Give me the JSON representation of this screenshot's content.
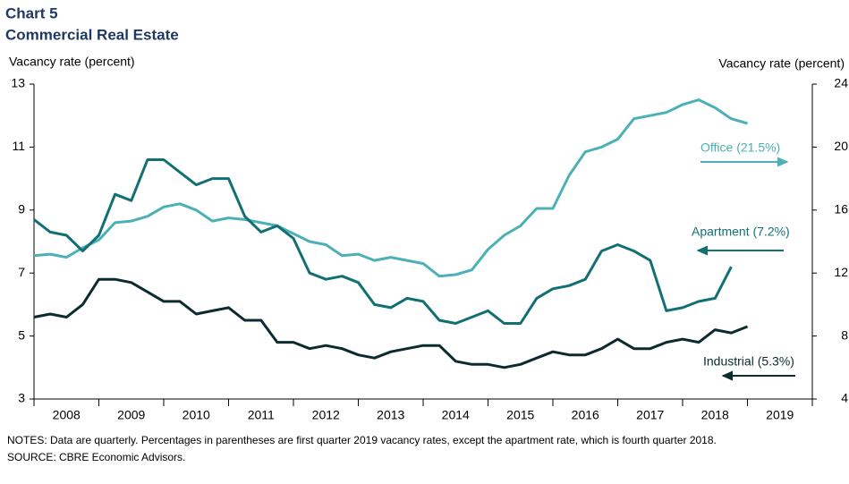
{
  "chart_data": {
    "type": "line",
    "title": "Chart 5",
    "subtitle": "Commercial Real Estate",
    "y_label": "Vacancy rate (percent)",
    "y2_label": "Vacancy rate (percent)",
    "notes": "NOTES: Data are quarterly. Percentages in parentheses are first quarter 2019 vacancy rates, except the apartment rate, which is fourth quarter 2018.",
    "source": "SOURCE: CBRE Economic Advisors.",
    "categories": [
      "2008",
      null,
      null,
      null,
      "2009",
      null,
      null,
      null,
      "2010",
      null,
      null,
      null,
      "2011",
      null,
      null,
      null,
      "2012",
      null,
      null,
      null,
      "2013",
      null,
      null,
      null,
      "2014",
      null,
      null,
      null,
      "2015",
      null,
      null,
      null,
      "2016",
      null,
      null,
      null,
      "2017",
      null,
      null,
      null,
      "2018",
      null,
      null,
      null,
      "2019"
    ],
    "ylim": [
      3,
      13
    ],
    "yticks": [
      3,
      5,
      7,
      9,
      11,
      13
    ],
    "y2lim": [
      4,
      24
    ],
    "y2ticks": [
      4,
      8,
      12,
      16,
      20,
      24
    ],
    "series": [
      {
        "name": "Office (21.5%)",
        "color": "#4bb1b6",
        "axis": "y2",
        "values": [
          13.1,
          13.2,
          13.0,
          13.6,
          14.1,
          15.2,
          15.3,
          15.6,
          16.2,
          16.4,
          16.0,
          15.3,
          15.5,
          15.4,
          15.2,
          15.0,
          14.5,
          14.0,
          13.8,
          13.1,
          13.2,
          12.8,
          13.0,
          12.8,
          12.6,
          11.8,
          11.9,
          12.2,
          13.5,
          14.4,
          15.0,
          16.1,
          16.1,
          18.2,
          19.7,
          20.0,
          20.5,
          21.8,
          22.0,
          22.2,
          22.7,
          23.0,
          22.5,
          21.8,
          21.5
        ]
      },
      {
        "name": "Apartment (7.2%)",
        "color": "#127073",
        "values": [
          8.7,
          8.3,
          8.2,
          7.7,
          8.2,
          9.5,
          9.3,
          10.6,
          10.6,
          10.2,
          9.8,
          10.0,
          10.0,
          8.8,
          8.3,
          8.5,
          8.1,
          7.0,
          6.8,
          6.9,
          6.7,
          6.0,
          5.9,
          6.2,
          6.1,
          5.5,
          5.4,
          5.6,
          5.8,
          5.4,
          5.4,
          6.2,
          6.5,
          6.6,
          6.8,
          7.7,
          7.9,
          7.7,
          7.4,
          5.8,
          5.9,
          6.1,
          6.2,
          7.2,
          null
        ]
      },
      {
        "name": "Industrial (5.3%)",
        "color": "#0c2b2e",
        "values": [
          5.6,
          5.7,
          5.6,
          6.0,
          6.8,
          6.8,
          6.7,
          6.4,
          6.1,
          6.1,
          5.7,
          5.8,
          5.9,
          5.5,
          5.5,
          4.8,
          4.8,
          4.6,
          4.7,
          4.6,
          4.4,
          4.3,
          4.5,
          4.6,
          4.7,
          4.7,
          4.2,
          4.1,
          4.1,
          4.0,
          4.1,
          4.3,
          4.5,
          4.4,
          4.4,
          4.6,
          4.9,
          4.6,
          4.6,
          4.8,
          4.9,
          4.8,
          5.2,
          5.1,
          5.3
        ]
      }
    ]
  }
}
